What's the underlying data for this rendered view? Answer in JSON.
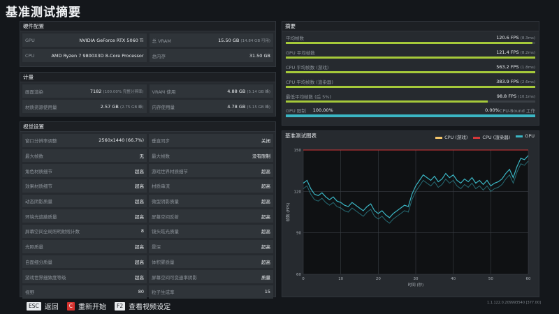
{
  "page": {
    "title": "基准测试摘要"
  },
  "hardware": {
    "header": "硬件配置",
    "rows": [
      {
        "label": "GPU",
        "value": "NVIDIA GeForce RTX 5060 Ti"
      },
      {
        "label": "总 VRAM",
        "value": "15.50 GB",
        "sub": "(14.84 GB 可用)"
      },
      {
        "label": "CPU",
        "value": "AMD Ryzen 7 9800X3D 8-Core Processor"
      },
      {
        "label": "总内存",
        "value": "31.50 GB"
      }
    ]
  },
  "compute": {
    "header": "计量",
    "rows": [
      {
        "label": "画面渲染",
        "value": "7182",
        "sub": "(100.00% 完整分辨率)"
      },
      {
        "label": "VRAM 使用",
        "value": "4.88 GB",
        "sub": "(5.14 GB 峰)"
      },
      {
        "label": "材质资源使用量",
        "value": "2.57 GB",
        "sub": "(2.75 GB 峰)"
      },
      {
        "label": "内存使用量",
        "value": "4.78 GB",
        "sub": "(5.15 GB 峰)"
      }
    ]
  },
  "visual": {
    "header": "视觉设置",
    "rows": [
      {
        "label": "窗口分辨率调整",
        "value": "2560x1440 (66.7%)"
      },
      {
        "label": "垂直同步",
        "value": "关闭"
      },
      {
        "label": "最大帧数",
        "value": "无"
      },
      {
        "label": "最大帧数",
        "value": "没有限制"
      },
      {
        "label": "角色材质细节",
        "value": "超高"
      },
      {
        "label": "游戏世界材质细节",
        "value": "超高"
      },
      {
        "label": "效果材质细节",
        "value": "超高"
      },
      {
        "label": "材质串流",
        "value": "超高"
      },
      {
        "label": "动态阴影质量",
        "value": "超高"
      },
      {
        "label": "微型阴影质量",
        "value": "超高"
      },
      {
        "label": "环境光遮蔽质量",
        "value": "超高"
      },
      {
        "label": "屏幕空间反射",
        "value": "超高"
      },
      {
        "label": "屏幕空间全局照明射线计数",
        "value": "8"
      },
      {
        "label": "镜头眩光质量",
        "value": "超高"
      },
      {
        "label": "光照质量",
        "value": "超高"
      },
      {
        "label": "景深",
        "value": "超高"
      },
      {
        "label": "自面细分质量",
        "value": "超高"
      },
      {
        "label": "体积雾质量",
        "value": "超高"
      },
      {
        "label": "游戏世界细致度等级",
        "value": "超高"
      },
      {
        "label": "屏幕空间可变速率阴影",
        "value": "质量"
      },
      {
        "label": "视野",
        "value": "80"
      },
      {
        "label": "粒子生成率",
        "value": "15"
      }
    ]
  },
  "summary": {
    "header": "摘要",
    "rows": [
      {
        "label": "平均帧数",
        "value": "120.6 FPS",
        "sub": "(8.3ms)",
        "fill": 0.99
      },
      {
        "label": "GPU 平均帧数",
        "value": "121.4 FPS",
        "sub": "(8.2ms)",
        "fill": 1.0
      },
      {
        "label": "CPU 平均帧数 (游戏)",
        "value": "563.2 FPS",
        "sub": "(1.8ms)",
        "fill": 1.0
      },
      {
        "label": "CPU 平均帧数 (渲染器)",
        "value": "383.9 FPS",
        "sub": "(2.6ms)",
        "fill": 1.0
      },
      {
        "label": "最低平均帧数 (后 5%)",
        "value": "98.8 FPS",
        "sub": "(10.1ms)",
        "fill": 0.81
      }
    ],
    "gpu_limit": {
      "label": "GPU 限制",
      "value": "100.00%",
      "cpu_value": "0.00%",
      "cpu_label": "CPU-Bound 工作",
      "fill": 1.0,
      "color": "#3ab6c4"
    },
    "bar_color": "#a5c93a"
  },
  "chart_panel": {
    "header": "基准测试图表"
  },
  "chart_data": {
    "type": "line",
    "title": "基准测试图表",
    "xlabel": "时间 (秒)",
    "ylabel": "帧数 (FPS)",
    "xlim": [
      0,
      60
    ],
    "ylim": [
      60,
      150
    ],
    "x_ticks": [
      "0",
      "10",
      "20",
      "30",
      "40",
      "50",
      "60"
    ],
    "y_ticks": [
      "60",
      "90",
      "120",
      "150"
    ],
    "grid": true,
    "legend": "top-right",
    "series": [
      {
        "name": "CPU (游戏)",
        "color": "#f4c56a",
        "values": []
      },
      {
        "name": "CPU (渲染器)",
        "color": "#d6383a",
        "values": []
      },
      {
        "name": "GPU",
        "color": "#3ab6c4",
        "x": [
          0,
          1,
          2,
          3,
          4,
          5,
          6,
          7,
          8,
          9,
          10,
          11,
          12,
          13,
          14,
          15,
          16,
          17,
          18,
          19,
          20,
          21,
          22,
          23,
          24,
          25,
          26,
          27,
          28,
          29,
          30,
          31,
          32,
          33,
          34,
          35,
          36,
          37,
          38,
          39,
          40,
          41,
          42,
          43,
          44,
          45,
          46,
          47,
          48,
          49,
          50,
          51,
          52,
          53,
          54,
          55,
          56,
          57,
          58,
          59,
          60
        ],
        "values": [
          126,
          128,
          122,
          118,
          117,
          119,
          116,
          114,
          116,
          113,
          112,
          110,
          109,
          112,
          110,
          108,
          106,
          109,
          111,
          106,
          104,
          106,
          103,
          101,
          104,
          106,
          108,
          110,
          109,
          118,
          124,
          128,
          132,
          130,
          128,
          131,
          127,
          129,
          133,
          130,
          132,
          128,
          126,
          129,
          127,
          130,
          126,
          128,
          125,
          128,
          124,
          126,
          127,
          129,
          133,
          136,
          130,
          138,
          144,
          143,
          146
        ]
      }
    ],
    "cap_line": {
      "value": 150,
      "color": "#d6383a"
    }
  },
  "footer": {
    "items": [
      {
        "key": "ESC",
        "label": "返回"
      },
      {
        "key": "C",
        "label": "重新开始"
      },
      {
        "key": "F2",
        "label": "查看视频设定"
      }
    ],
    "version": "1.1.122.0.209993540 [377.00]"
  }
}
